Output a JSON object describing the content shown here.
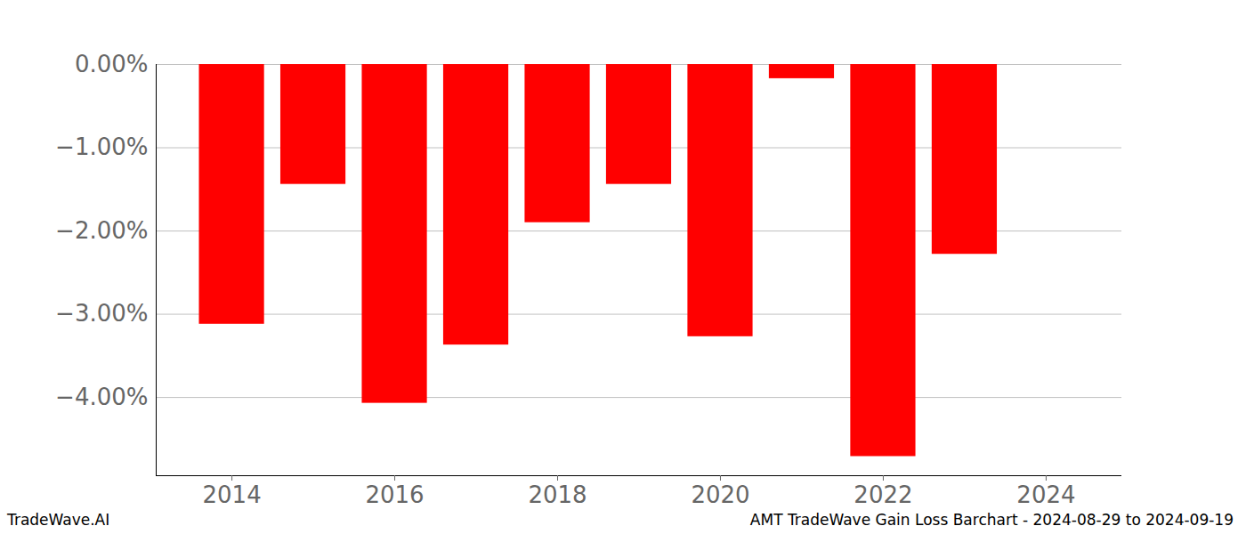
{
  "chart_data": {
    "type": "bar",
    "caption": "AMT TradeWave Gain Loss Barchart - 2024-08-29 to 2024-09-19",
    "credit": "TradeWave.AI",
    "x": [
      2014,
      2015,
      2016,
      2017,
      2018,
      2019,
      2020,
      2021,
      2022,
      2023
    ],
    "values": [
      -3.12,
      -1.44,
      -4.07,
      -3.37,
      -1.9,
      -1.44,
      -3.27,
      -0.17,
      -4.71,
      -2.28
    ],
    "color": "#ff0000",
    "xlim": [
      2013.07,
      2024.93
    ],
    "xticks": [
      2014,
      2016,
      2018,
      2020,
      2022,
      2024
    ],
    "ylim": [
      -4.94,
      0
    ],
    "yticks": [
      {
        "value": 0,
        "label": "0.00%"
      },
      {
        "value": -1,
        "label": "−1.00%"
      },
      {
        "value": -2,
        "label": "−2.00%"
      },
      {
        "value": -3,
        "label": "−3.00%"
      },
      {
        "value": -4,
        "label": "−4.00%"
      }
    ],
    "grid": true
  }
}
